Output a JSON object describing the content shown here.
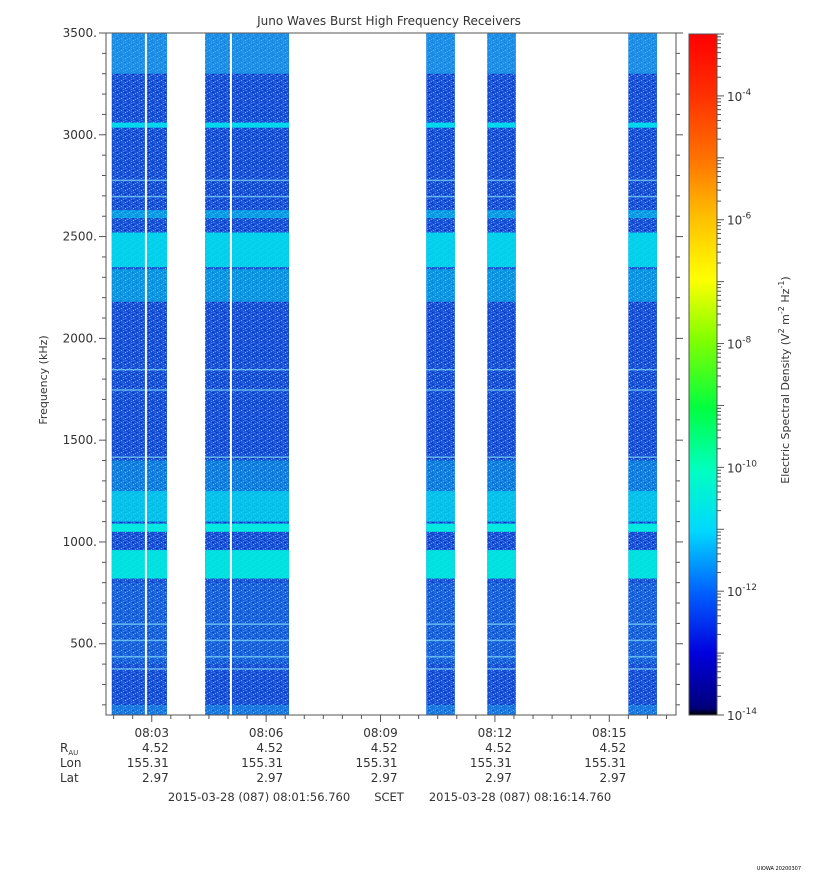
{
  "chart_data": {
    "type": "heatmap",
    "title": "Juno Waves Burst High Frequency Receivers",
    "ylabel": "Frequency (kHz)",
    "ylim": [
      150,
      3500
    ],
    "yticks": [
      500,
      1000,
      1500,
      2000,
      2500,
      3000,
      3500
    ],
    "ytick_labels": [
      "500.",
      "1000.",
      "1500.",
      "2000.",
      "2500.",
      "3000.",
      "3500."
    ],
    "xlim_minutes": [
      8.03,
      8.28
    ],
    "xticks": [
      "08:03",
      "08:06",
      "08:09",
      "08:12",
      "08:15"
    ],
    "xtick_minutes": [
      3,
      6,
      9,
      12,
      15
    ],
    "ephemeris": [
      {
        "label": "R",
        "sub": "AU",
        "values": [
          "4.52",
          "4.52",
          "4.52",
          "4.52",
          "4.52"
        ]
      },
      {
        "label": "Lon",
        "sub": "",
        "values": [
          "155.31",
          "155.31",
          "155.31",
          "155.31",
          "155.31"
        ]
      },
      {
        "label": "Lat",
        "sub": "",
        "values": [
          "2.97",
          "2.97",
          "2.97",
          "2.97",
          "2.97"
        ]
      }
    ],
    "time_start": "2015-03-28 (087) 08:01:56.760",
    "time_system": "SCET",
    "time_end": "2015-03-28 (087) 08:16:14.760",
    "data_intervals_minutes": [
      [
        1.95,
        3.4
      ],
      [
        4.4,
        6.6
      ],
      [
        10.2,
        10.95
      ],
      [
        11.8,
        12.55
      ],
      [
        15.5,
        16.25
      ]
    ],
    "emission_bands_khz": [
      {
        "center": 2400,
        "width": 200,
        "level": "1e-11.4"
      },
      {
        "center": 1150,
        "width": 150,
        "level": "1e-11.4"
      },
      {
        "center": 1080,
        "width": 40,
        "level": "1e-11.2"
      },
      {
        "center": 890,
        "width": 60,
        "level": "1e-11.1"
      },
      {
        "center": 3050,
        "width": 30,
        "level": "1e-11.3"
      }
    ],
    "background_level": "1e-12",
    "colorbar": {
      "label": "Electric Spectral Density (V",
      "label_sup1": "2",
      "label_mid": " m",
      "label_sup2": "-2",
      "label_mid2": " Hz",
      "label_sup3": "-1",
      "label_end": ")",
      "scale": "log",
      "range_exponents": [
        -14,
        -3
      ],
      "ticks": [
        {
          "base": "10",
          "exp": "-4",
          "value": -4
        },
        {
          "base": "10",
          "exp": "-6",
          "value": -6
        },
        {
          "base": "10",
          "exp": "-8",
          "value": -8
        },
        {
          "base": "10",
          "exp": "-10",
          "value": -10
        },
        {
          "base": "10",
          "exp": "-12",
          "value": -12
        },
        {
          "base": "10",
          "exp": "-14",
          "value": -14
        }
      ],
      "colors": [
        "#000080",
        "#0000ff",
        "#0080ff",
        "#00ffff",
        "#00ff00",
        "#ffff00",
        "#ff8000",
        "#ff0000"
      ]
    },
    "grid": false
  },
  "footer": {
    "stamp": "UIOWA 20200307"
  }
}
